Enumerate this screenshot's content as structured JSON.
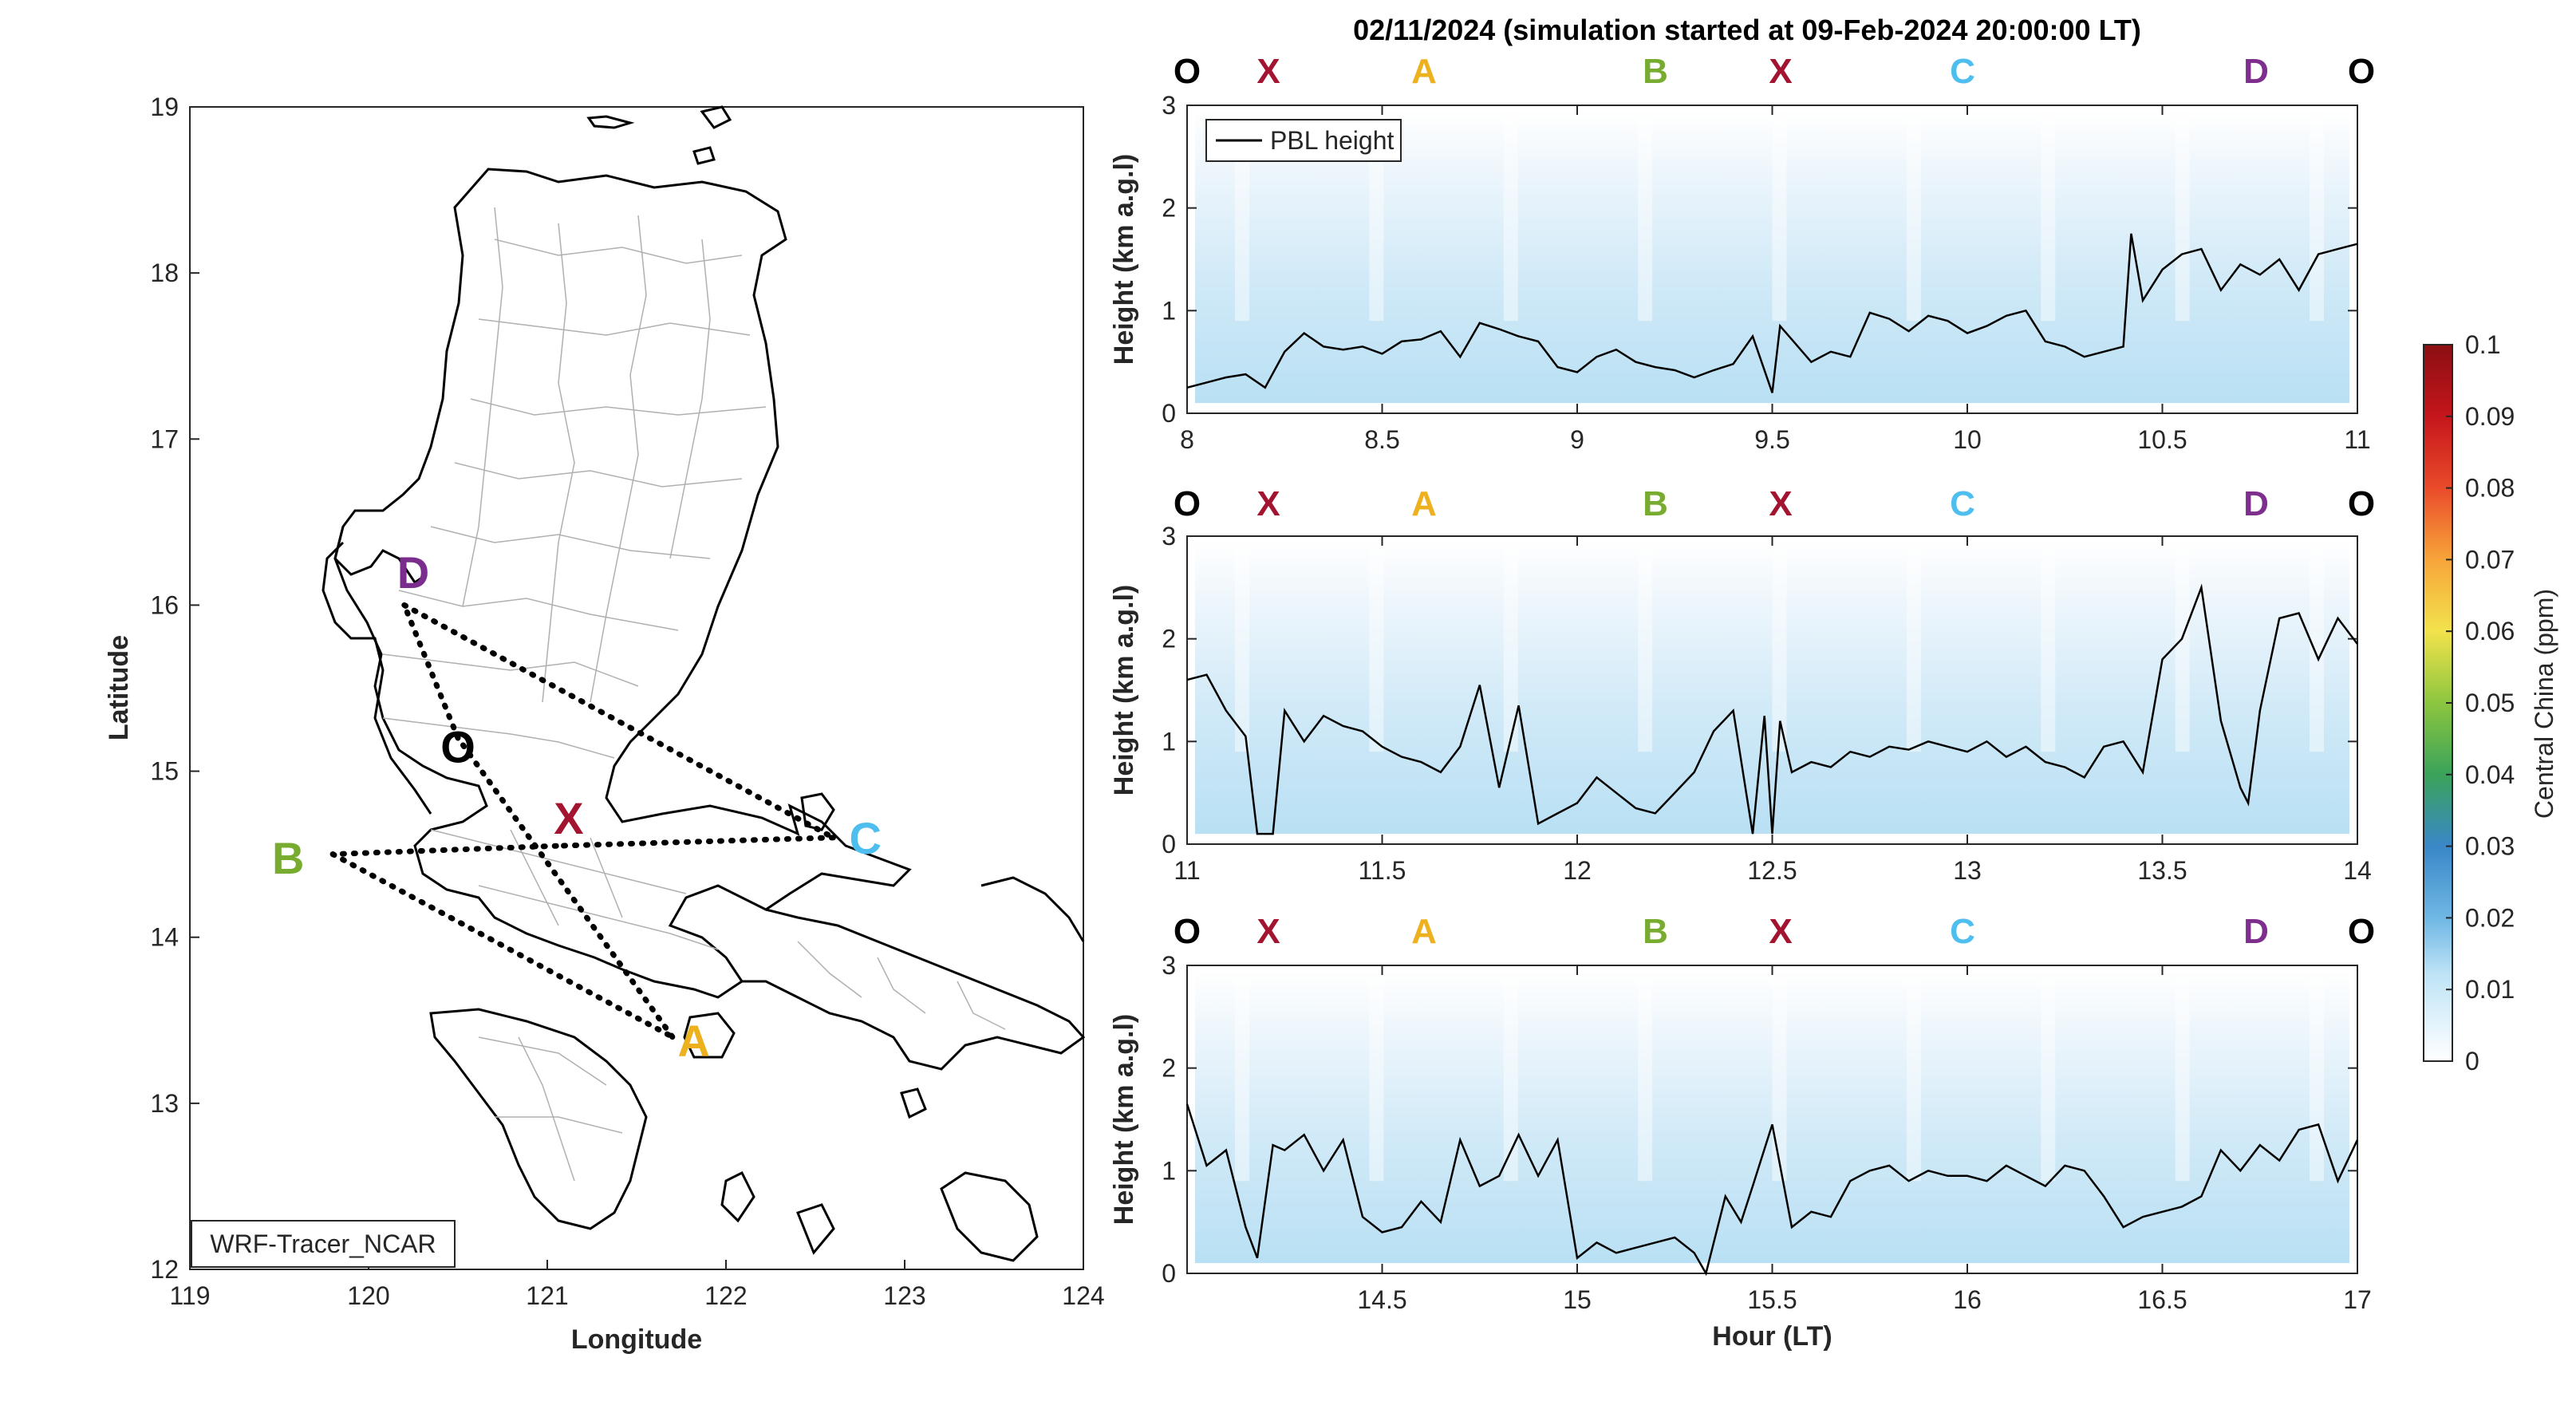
{
  "title": "02/11/2024 (simulation started at 09-Feb-2024 20:00:00 LT)",
  "map": {
    "xlabel": "Longitude",
    "ylabel": "Latitude",
    "xlim": [
      119,
      124
    ],
    "ylim": [
      12,
      19
    ],
    "xticks": [
      "119",
      "120",
      "121",
      "122",
      "123",
      "124"
    ],
    "yticks": [
      "12",
      "13",
      "14",
      "15",
      "16",
      "17",
      "18",
      "19"
    ],
    "model_label": "WRF-Tracer_NCAR",
    "route": [
      {
        "label": "D",
        "lon": 120.2,
        "lat": 16.0
      },
      {
        "label": "C",
        "lon": 122.6,
        "lat": 14.6
      },
      {
        "label": "X",
        "lon": 121.05,
        "lat": 14.55
      },
      {
        "label": "B",
        "lon": 119.8,
        "lat": 14.5
      },
      {
        "label": "A",
        "lon": 121.7,
        "lat": 13.4
      },
      {
        "label": "O",
        "lon": 120.5,
        "lat": 15.2
      }
    ],
    "label_positions": [
      {
        "label": "D",
        "lon": 120.25,
        "lat": 16.2,
        "color": "#7B2D8E"
      },
      {
        "label": "O",
        "lon": 120.5,
        "lat": 15.15,
        "color": "#000000"
      },
      {
        "label": "X",
        "lon": 121.12,
        "lat": 14.72,
        "color": "#A2142F"
      },
      {
        "label": "C",
        "lon": 122.78,
        "lat": 14.6,
        "color": "#4DBEEE"
      },
      {
        "label": "B",
        "lon": 119.55,
        "lat": 14.48,
        "color": "#77AC30"
      },
      {
        "label": "A",
        "lon": 121.82,
        "lat": 13.38,
        "color": "#EDB120"
      }
    ]
  },
  "colorbar": {
    "label": "Central China (ppm)",
    "ticks": [
      "0",
      "0.01",
      "0.02",
      "0.03",
      "0.04",
      "0.05",
      "0.06",
      "0.07",
      "0.08",
      "0.09",
      "0.1"
    ],
    "range": [
      0,
      0.1
    ]
  },
  "waypoint_bar": [
    {
      "label": "O",
      "color": "#000000"
    },
    {
      "label": "X",
      "color": "#A2142F"
    },
    {
      "label": "A",
      "color": "#EDB120"
    },
    {
      "label": "B",
      "color": "#77AC30"
    },
    {
      "label": "X",
      "color": "#A2142F"
    },
    {
      "label": "C",
      "color": "#4DBEEE"
    },
    {
      "label": "D",
      "color": "#7E2F8E"
    },
    {
      "label": "O",
      "color": "#000000"
    }
  ],
  "legend_label": "PBL height",
  "chart_data": [
    {
      "type": "line",
      "ylabel": "Height (km a.g.l)",
      "xlabel": "",
      "xlim": [
        8,
        11
      ],
      "ylim": [
        0,
        3
      ],
      "xticks": [
        "8",
        "8.5",
        "9",
        "9.5",
        "10",
        "10.5",
        "11"
      ],
      "yticks": [
        "0",
        "1",
        "2",
        "3"
      ],
      "series": [
        {
          "name": "PBL height",
          "x": [
            8.0,
            8.05,
            8.1,
            8.15,
            8.2,
            8.25,
            8.3,
            8.35,
            8.4,
            8.45,
            8.5,
            8.55,
            8.6,
            8.65,
            8.7,
            8.75,
            8.8,
            8.85,
            8.9,
            8.95,
            9.0,
            9.05,
            9.1,
            9.15,
            9.2,
            9.25,
            9.3,
            9.35,
            9.4,
            9.45,
            9.5,
            9.52,
            9.55,
            9.6,
            9.65,
            9.7,
            9.75,
            9.8,
            9.85,
            9.9,
            9.95,
            10.0,
            10.05,
            10.1,
            10.15,
            10.2,
            10.25,
            10.3,
            10.35,
            10.4,
            10.42,
            10.45,
            10.5,
            10.55,
            10.6,
            10.65,
            10.7,
            10.75,
            10.8,
            10.85,
            10.9,
            10.95,
            11.0
          ],
          "y": [
            0.25,
            0.3,
            0.35,
            0.38,
            0.25,
            0.6,
            0.78,
            0.65,
            0.62,
            0.65,
            0.58,
            0.7,
            0.72,
            0.8,
            0.55,
            0.88,
            0.82,
            0.75,
            0.7,
            0.45,
            0.4,
            0.55,
            0.62,
            0.5,
            0.45,
            0.42,
            0.35,
            0.42,
            0.48,
            0.75,
            0.2,
            0.85,
            0.72,
            0.5,
            0.6,
            0.55,
            0.98,
            0.92,
            0.8,
            0.95,
            0.9,
            0.78,
            0.85,
            0.95,
            1.0,
            0.7,
            0.65,
            0.55,
            0.6,
            0.65,
            1.75,
            1.1,
            1.4,
            1.55,
            1.6,
            1.2,
            1.45,
            1.35,
            1.5,
            1.2,
            1.55,
            1.6,
            1.65
          ]
        }
      ]
    },
    {
      "type": "line",
      "ylabel": "Height (km a.g.l)",
      "xlabel": "",
      "xlim": [
        11,
        14
      ],
      "ylim": [
        0,
        3
      ],
      "xticks": [
        "11",
        "11.5",
        "12",
        "12.5",
        "13",
        "13.5",
        "14"
      ],
      "yticks": [
        "0",
        "1",
        "2",
        "3"
      ],
      "series": [
        {
          "name": "PBL height",
          "x": [
            11.0,
            11.05,
            11.1,
            11.15,
            11.18,
            11.22,
            11.25,
            11.3,
            11.35,
            11.4,
            11.45,
            11.5,
            11.55,
            11.6,
            11.65,
            11.7,
            11.75,
            11.8,
            11.85,
            11.9,
            11.95,
            12.0,
            12.05,
            12.1,
            12.15,
            12.2,
            12.25,
            12.3,
            12.35,
            12.4,
            12.45,
            12.48,
            12.5,
            12.52,
            12.55,
            12.6,
            12.65,
            12.7,
            12.75,
            12.8,
            12.85,
            12.9,
            12.95,
            13.0,
            13.05,
            13.1,
            13.15,
            13.2,
            13.25,
            13.3,
            13.35,
            13.4,
            13.45,
            13.5,
            13.55,
            13.6,
            13.65,
            13.7,
            13.72,
            13.75,
            13.8,
            13.85,
            13.9,
            13.95,
            14.0
          ],
          "y": [
            1.6,
            1.65,
            1.3,
            1.05,
            0.1,
            0.1,
            1.3,
            1.0,
            1.25,
            1.15,
            1.1,
            0.95,
            0.85,
            0.8,
            0.7,
            0.95,
            1.55,
            0.55,
            1.35,
            0.2,
            0.3,
            0.4,
            0.65,
            0.5,
            0.35,
            0.3,
            0.5,
            0.7,
            1.1,
            1.3,
            0.1,
            1.25,
            0.1,
            1.2,
            0.7,
            0.8,
            0.75,
            0.9,
            0.85,
            0.95,
            0.92,
            1.0,
            0.95,
            0.9,
            1.0,
            0.85,
            0.95,
            0.8,
            0.75,
            0.65,
            0.95,
            1.0,
            0.7,
            1.8,
            2.0,
            2.5,
            1.2,
            0.55,
            0.4,
            1.3,
            2.2,
            2.25,
            1.8,
            2.2,
            1.95
          ]
        }
      ]
    },
    {
      "type": "line",
      "ylabel": "Height (km a.g.l)",
      "xlabel": "Hour (LT)",
      "xlim": [
        14,
        17
      ],
      "ylim": [
        0,
        3
      ],
      "xticks": [
        "14.5",
        "15",
        "15.5",
        "16",
        "16.5",
        "17"
      ],
      "yticks": [
        "0",
        "1",
        "2",
        "3"
      ],
      "series": [
        {
          "name": "PBL height",
          "x": [
            14.0,
            14.05,
            14.1,
            14.15,
            14.18,
            14.22,
            14.25,
            14.3,
            14.35,
            14.4,
            14.45,
            14.5,
            14.55,
            14.6,
            14.65,
            14.7,
            14.75,
            14.8,
            14.85,
            14.9,
            14.95,
            15.0,
            15.05,
            15.1,
            15.15,
            15.2,
            15.25,
            15.3,
            15.33,
            15.38,
            15.42,
            15.45,
            15.5,
            15.55,
            15.6,
            15.65,
            15.7,
            15.75,
            15.8,
            15.85,
            15.9,
            15.95,
            16.0,
            16.05,
            16.1,
            16.15,
            16.2,
            16.25,
            16.3,
            16.35,
            16.4,
            16.45,
            16.5,
            16.55,
            16.6,
            16.65,
            16.7,
            16.75,
            16.8,
            16.85,
            16.9,
            16.95,
            17.0
          ],
          "y": [
            1.65,
            1.05,
            1.2,
            0.45,
            0.15,
            1.25,
            1.2,
            1.35,
            1.0,
            1.3,
            0.55,
            0.4,
            0.45,
            0.7,
            0.5,
            1.3,
            0.85,
            0.95,
            1.35,
            0.95,
            1.3,
            0.15,
            0.3,
            0.2,
            0.25,
            0.3,
            0.35,
            0.2,
            0.0,
            0.75,
            0.5,
            0.85,
            1.45,
            0.45,
            0.6,
            0.55,
            0.9,
            1.0,
            1.05,
            0.9,
            1.0,
            0.95,
            0.95,
            0.9,
            1.05,
            0.95,
            0.85,
            1.05,
            1.0,
            0.75,
            0.45,
            0.55,
            0.6,
            0.65,
            0.75,
            1.2,
            1.0,
            1.25,
            1.1,
            1.4,
            1.45,
            0.9,
            1.3
          ]
        }
      ]
    }
  ]
}
